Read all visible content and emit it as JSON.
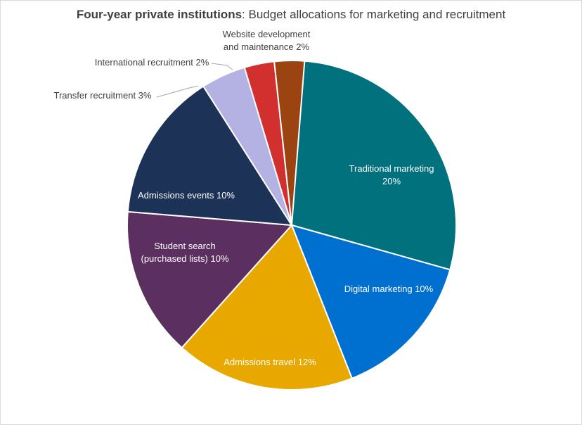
{
  "chart_data": {
    "type": "pie",
    "title_bold": "Four-year private institutions",
    "title_rest": ": Budget allocations for marketing and recruitment",
    "slices": [
      {
        "name": "Traditional marketing",
        "value": 20,
        "label_lines": [
          "Traditional marketing",
          "20%"
        ],
        "color": "#01717e",
        "label_color": "#ffffff"
      },
      {
        "name": "Digital marketing",
        "value": 10,
        "label_lines": [
          "Digital marketing  10%"
        ],
        "color": "#0070d0",
        "label_color": "#ffffff"
      },
      {
        "name": "Admissions travel",
        "value": 12,
        "label_lines": [
          "Admissions travel  12%"
        ],
        "color": "#e9a800",
        "label_color": "#ffffff"
      },
      {
        "name": "Student search (purchased lists)",
        "value": 10,
        "label_lines": [
          "Student search",
          "(purchased lists)  10%"
        ],
        "color": "#5b2f5f",
        "label_color": "#ffffff"
      },
      {
        "name": "Admissions events",
        "value": 10,
        "label_lines": [
          "Admissions events  10%"
        ],
        "color": "#1d3257",
        "label_color": "#ffffff"
      },
      {
        "name": "Transfer recruitment",
        "value": 3,
        "label_lines": [
          "Transfer recruitment  3%"
        ],
        "color": "#b4b2e2",
        "label_color": "#404040"
      },
      {
        "name": "International recruitment",
        "value": 2,
        "label_lines": [
          "International recruitment  2%"
        ],
        "color": "#d2302f",
        "label_color": "#404040"
      },
      {
        "name": "Website development and maintenance",
        "value": 2,
        "label_lines": [
          "Website development",
          "and maintenance  2%"
        ],
        "color": "#9c4312",
        "label_color": "#404040"
      }
    ]
  }
}
